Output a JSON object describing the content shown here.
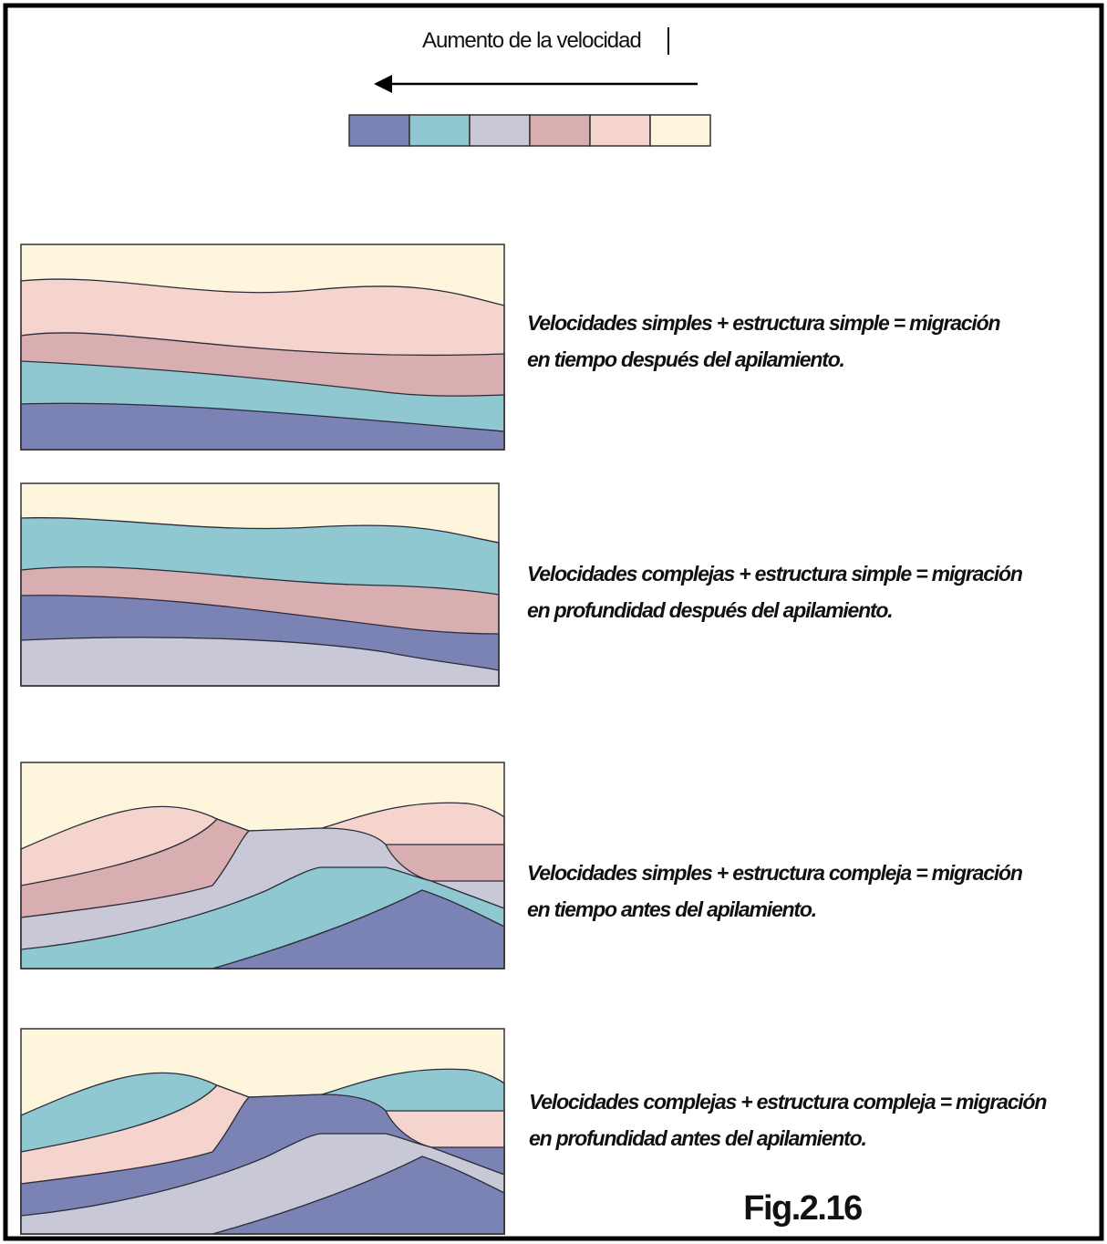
{
  "header": {
    "legend_title": "Aumento de la velocidad"
  },
  "panels": [
    {
      "caption": [
        "Velocidades simples + estructura simple = migración",
        "en tiempo después del apilamiento."
      ]
    },
    {
      "caption": [
        "Velocidades complejas + estructura simple = migración",
        "en profundidad después del apilamiento."
      ]
    },
    {
      "caption": [
        "Velocidades simples + estructura compleja = migración",
        "en tiempo antes del apilamiento."
      ]
    },
    {
      "caption": [
        "Velocidades complejas + estructura compleja = migración",
        "en profundidad antes del apilamiento."
      ]
    }
  ],
  "figure_label": "Fig.2.16"
}
